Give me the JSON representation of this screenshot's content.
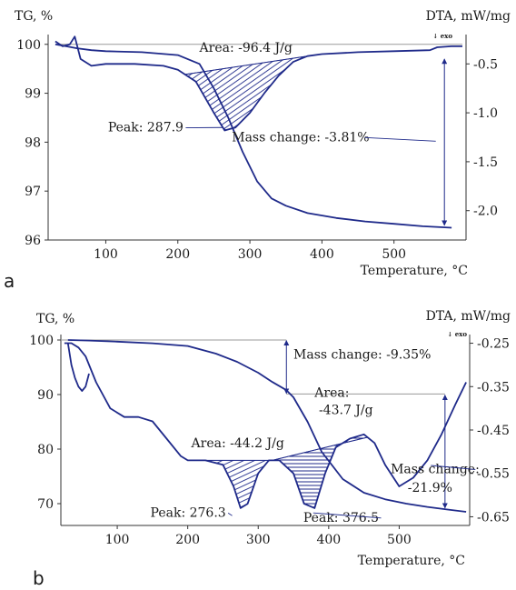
{
  "colors": {
    "curve": "#1f2a8a",
    "baseline": "#9a9a9a",
    "axis": "#333333",
    "hatch": "#1f2a8a"
  },
  "chart_data": [
    {
      "type": "line",
      "panel_label": "a",
      "title": "",
      "xlabel": "Temperature, °C",
      "ylabel_left": "TG, %",
      "ylabel_right": "DTA, mW/mg",
      "exo_marker": "↓ exo",
      "xlim": [
        20,
        600
      ],
      "ylim_left": [
        96,
        100.2
      ],
      "ylim_right": [
        -2.3,
        -0.2
      ],
      "x_ticks": [
        100,
        200,
        300,
        400,
        500
      ],
      "y_ticks_left": [
        96,
        97,
        98,
        99,
        100
      ],
      "y_ticks_right": [
        -0.5,
        -1.0,
        -1.5,
        -2.0
      ],
      "y_tick_labels_right": [
        "-0.5",
        "-1.0",
        "-1.5",
        "-2.0"
      ],
      "series": [
        {
          "axis": "left",
          "x": [
            30,
            45,
            60,
            80,
            100,
            150,
            200,
            230,
            250,
            270,
            290,
            310,
            330,
            350,
            380,
            420,
            460,
            500,
            540,
            580
          ],
          "y": [
            100.0,
            99.96,
            99.92,
            99.88,
            99.86,
            99.84,
            99.78,
            99.6,
            99.1,
            98.5,
            97.8,
            97.2,
            96.85,
            96.7,
            96.55,
            96.45,
            96.38,
            96.33,
            96.28,
            96.25
          ]
        },
        {
          "axis": "right",
          "x": [
            30,
            40,
            50,
            57,
            65,
            80,
            100,
            140,
            180,
            200,
            225,
            250,
            265,
            280,
            300,
            320,
            340,
            360,
            380,
            400,
            450,
            500,
            550,
            560,
            580,
            595
          ],
          "y": [
            -0.27,
            -0.32,
            -0.3,
            -0.22,
            -0.45,
            -0.52,
            -0.5,
            -0.5,
            -0.52,
            -0.56,
            -0.68,
            -1.0,
            -1.18,
            -1.15,
            -1.0,
            -0.8,
            -0.62,
            -0.48,
            -0.42,
            -0.4,
            -0.38,
            -0.37,
            -0.36,
            -0.33,
            -0.32,
            -0.32
          ]
        }
      ],
      "reference_line": {
        "axis": "left",
        "y": 100.0
      },
      "peak_area": {
        "x_start": 210,
        "x_end": 385
      },
      "mass_change_arrow": {
        "x": 570,
        "axis": "left",
        "y_from": 99.7,
        "y_to": 96.3
      },
      "annotations": [
        {
          "text": "Area: -96.4 J/g",
          "at": [
            230,
            99.85
          ]
        },
        {
          "text": "Peak: 287.9",
          "at": [
            103,
            98.22
          ],
          "points_to": [
            262,
            98.3
          ]
        },
        {
          "text": "Mass change: -3.81%",
          "at": [
            275,
            98.02
          ],
          "points_to": [
            558,
            98.02
          ]
        }
      ]
    },
    {
      "type": "line",
      "panel_label": "b",
      "title": "",
      "xlabel": "Temperature, °C",
      "ylabel_left": "TG, %",
      "ylabel_right": "DTA, mW/mg",
      "exo_marker": "↓ exo",
      "xlim": [
        20,
        600
      ],
      "ylim_left": [
        66,
        101
      ],
      "ylim_right": [
        -0.67,
        -0.23
      ],
      "x_ticks": [
        100,
        200,
        300,
        400,
        500
      ],
      "y_ticks_left": [
        70,
        80,
        90,
        100
      ],
      "y_ticks_right": [
        -0.25,
        -0.35,
        -0.45,
        -0.55,
        -0.65
      ],
      "y_tick_labels_right": [
        "-0.25",
        "-0.35",
        "-0.45",
        "-0.55",
        "-0.65"
      ],
      "series": [
        {
          "axis": "left",
          "x": [
            30,
            60,
            100,
            150,
            200,
            240,
            270,
            300,
            320,
            340,
            350,
            370,
            390,
            420,
            450,
            480,
            510,
            540,
            570,
            595
          ],
          "y": [
            100,
            99.9,
            99.7,
            99.4,
            98.9,
            97.5,
            96,
            94,
            92.3,
            90.8,
            89.5,
            85,
            79.5,
            74.5,
            72,
            70.8,
            70,
            69.4,
            68.9,
            68.5
          ]
        },
        {
          "axis": "right",
          "x": [
            25,
            35,
            45,
            55,
            70,
            90,
            110,
            130,
            150,
            170,
            190,
            200,
            225,
            250,
            265,
            275,
            285,
            300,
            315,
            330,
            350,
            365,
            380,
            395,
            410,
            430,
            450,
            465,
            480,
            500,
            520,
            540,
            560,
            580,
            595
          ],
          "y": [
            -0.25,
            -0.25,
            -0.26,
            -0.28,
            -0.34,
            -0.4,
            -0.42,
            -0.42,
            -0.43,
            -0.47,
            -0.51,
            -0.52,
            -0.52,
            -0.53,
            -0.58,
            -0.63,
            -0.62,
            -0.55,
            -0.52,
            -0.52,
            -0.55,
            -0.62,
            -0.63,
            -0.55,
            -0.49,
            -0.47,
            -0.46,
            -0.48,
            -0.53,
            -0.58,
            -0.56,
            -0.52,
            -0.46,
            -0.39,
            -0.34
          ]
        },
        {
          "axis": "right",
          "x": [
            30,
            35,
            40,
            45,
            50,
            55,
            60
          ],
          "y": [
            -0.25,
            -0.3,
            -0.33,
            -0.35,
            -0.36,
            -0.35,
            -0.32
          ]
        }
      ],
      "reference_lines": [
        {
          "axis": "left",
          "y": 100,
          "x_from": 20,
          "x_to": 340
        },
        {
          "axis": "left",
          "y": 90.1,
          "x_from": 340,
          "x_to": 565
        }
      ],
      "peak_areas": [
        {
          "x_start": 200,
          "x_end": 320
        },
        {
          "x_start": 320,
          "x_end": 455
        }
      ],
      "mass_change_arrows": [
        {
          "x": 340,
          "axis": "left",
          "y_from": 99.9,
          "y_to": 90.2
        },
        {
          "x": 565,
          "axis": "left",
          "y_from": 89.9,
          "y_to": 69.2
        }
      ],
      "annotations": [
        {
          "text": "Mass change: -9.35%",
          "at": [
            350,
            96.6
          ]
        },
        {
          "text": "Area:",
          "at": [
            380,
            89.6
          ]
        },
        {
          "text": "-43.7 J/g",
          "at": [
            386,
            86.4
          ]
        },
        {
          "text": "Area: -44.2 J/g",
          "at": [
            205,
            80.3
          ]
        },
        {
          "text": "Mass change:",
          "at": [
            488,
            75.6
          ],
          "points_to": [
            545,
            77
          ]
        },
        {
          "text": "-21.9%",
          "at": [
            512,
            72.2
          ]
        },
        {
          "text": "Peak: 276.3",
          "at": [
            147,
            67.6
          ],
          "points_to": [
            263,
            67.8
          ]
        },
        {
          "text": "Peak: 376.5",
          "at": [
            364,
            66.7
          ],
          "points_to": [
            378,
            68.3
          ]
        }
      ]
    }
  ]
}
